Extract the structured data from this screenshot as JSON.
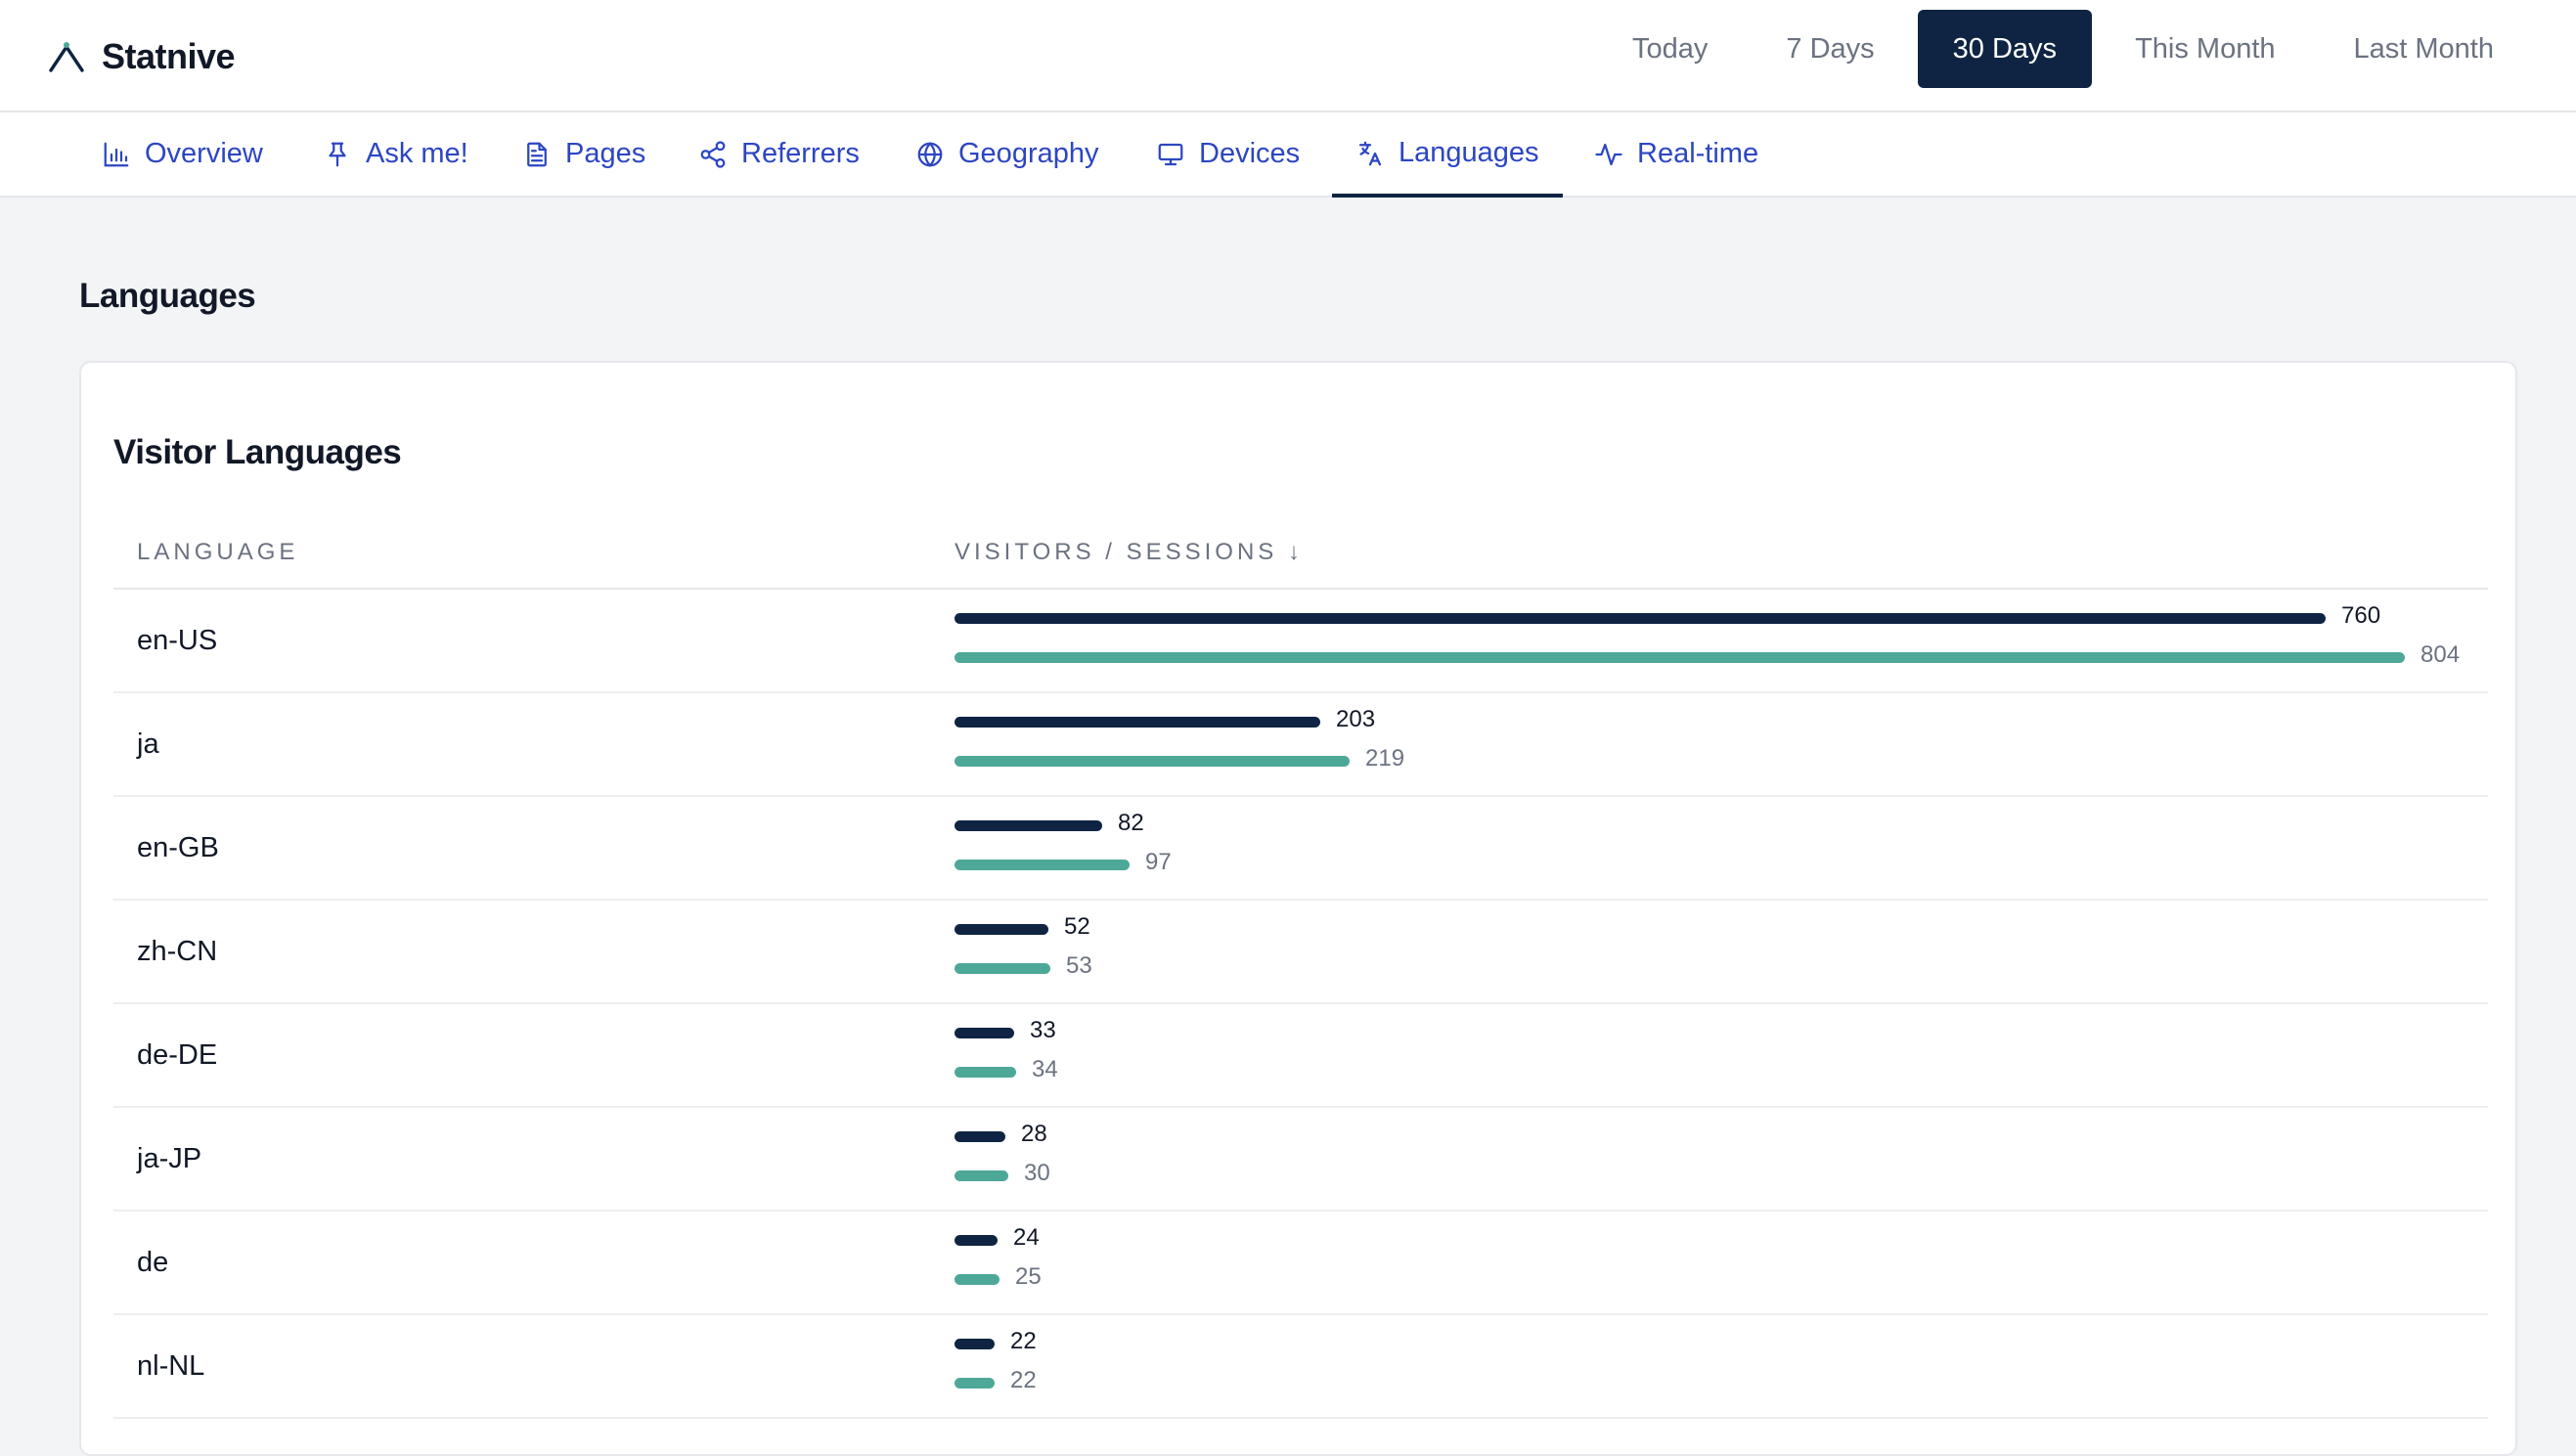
{
  "app": {
    "name": "Statnive"
  },
  "ranges": [
    "Today",
    "7 Days",
    "30 Days",
    "This Month",
    "Last Month"
  ],
  "active_range": "30 Days",
  "tabs": [
    {
      "label": "Overview",
      "icon": "bar-chart-icon"
    },
    {
      "label": "Ask me!",
      "icon": "pin-icon"
    },
    {
      "label": "Pages",
      "icon": "document-icon"
    },
    {
      "label": "Referrers",
      "icon": "share-icon"
    },
    {
      "label": "Geography",
      "icon": "globe-icon"
    },
    {
      "label": "Devices",
      "icon": "monitor-icon"
    },
    {
      "label": "Languages",
      "icon": "translate-icon"
    },
    {
      "label": "Real-time",
      "icon": "activity-icon"
    }
  ],
  "active_tab": "Languages",
  "page": {
    "section_title": "Languages",
    "card_title": "Visitor Languages",
    "col_language": "LANGUAGE",
    "col_metric": "VISITORS / SESSIONS ↓"
  },
  "colors": {
    "visitors_bar": "#0f2442",
    "sessions_bar": "#4ea898",
    "tab_text": "#2c46c2"
  },
  "rows": [
    {
      "language": "en-US",
      "visitors": 760,
      "sessions": 804
    },
    {
      "language": "ja",
      "visitors": 203,
      "sessions": 219
    },
    {
      "language": "en-GB",
      "visitors": 82,
      "sessions": 97
    },
    {
      "language": "zh-CN",
      "visitors": 52,
      "sessions": 53
    },
    {
      "language": "de-DE",
      "visitors": 33,
      "sessions": 34
    },
    {
      "language": "ja-JP",
      "visitors": 28,
      "sessions": 30
    },
    {
      "language": "de",
      "visitors": 24,
      "sessions": 25
    },
    {
      "language": "nl-NL",
      "visitors": 22,
      "sessions": 22
    }
  ]
}
